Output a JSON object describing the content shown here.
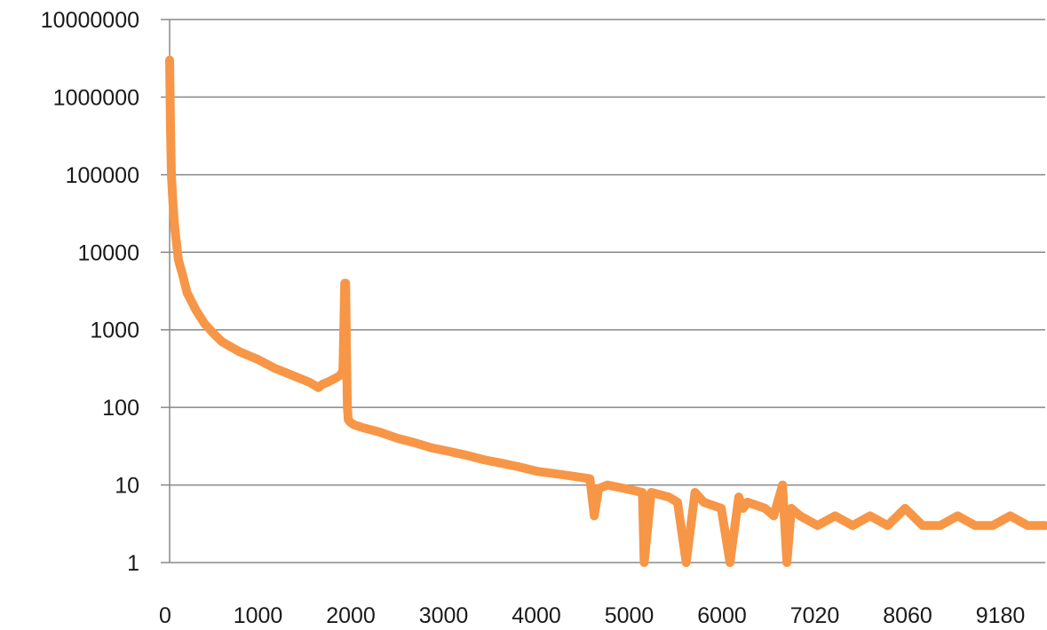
{
  "chart_data": {
    "type": "line",
    "title": "",
    "xlabel": "",
    "ylabel": "",
    "y_scale": "log",
    "ylim": [
      1,
      10000000
    ],
    "grid": {
      "horizontal": true,
      "vertical": false
    },
    "legend": "none",
    "y_ticks": [
      "1",
      "10",
      "100",
      "1000",
      "10000",
      "100000",
      "1000000",
      "10000000"
    ],
    "x_ticks": [
      "0",
      "1000",
      "2000",
      "3000",
      "4000",
      "5000",
      "6000",
      "7020",
      "8060",
      "9180"
    ],
    "series": [
      {
        "color": "#f79646",
        "x": [
          0,
          10,
          20,
          40,
          60,
          100,
          150,
          200,
          300,
          400,
          500,
          600,
          800,
          1000,
          1200,
          1400,
          1600,
          1700,
          1750,
          1800,
          1900,
          1950,
          1980,
          2000,
          2010,
          2020,
          2030,
          2040,
          2060,
          2100,
          2200,
          2400,
          2600,
          2800,
          3000,
          3200,
          3400,
          3600,
          3800,
          4000,
          4200,
          4400,
          4600,
          4800,
          4850,
          4900,
          5000,
          5200,
          5400,
          5420,
          5500,
          5700,
          5800,
          5900,
          6000,
          6100,
          6300,
          6400,
          6500,
          6550,
          6600,
          6800,
          6900,
          7000,
          7050,
          7100,
          7200,
          7400,
          7600,
          7800,
          8000,
          8200,
          8400,
          8600,
          8800,
          9000,
          9200,
          9400,
          9600,
          9800,
          10000
        ],
        "y": [
          3000000,
          400000,
          100000,
          40000,
          20000,
          8000,
          5000,
          3000,
          1800,
          1200,
          900,
          700,
          520,
          420,
          320,
          260,
          210,
          180,
          200,
          210,
          240,
          260,
          300,
          4000,
          4000,
          500,
          100,
          70,
          65,
          60,
          55,
          48,
          40,
          35,
          30,
          27,
          24,
          21,
          19,
          17,
          15,
          14,
          13,
          12,
          4,
          9,
          10,
          9,
          8,
          1,
          8,
          7,
          6,
          1,
          8,
          6,
          5,
          1,
          7,
          5,
          6,
          5,
          4,
          10,
          1,
          5,
          4,
          3,
          4,
          3,
          4,
          3,
          5,
          3,
          3,
          4,
          3,
          3,
          4,
          3,
          3
        ]
      }
    ]
  }
}
